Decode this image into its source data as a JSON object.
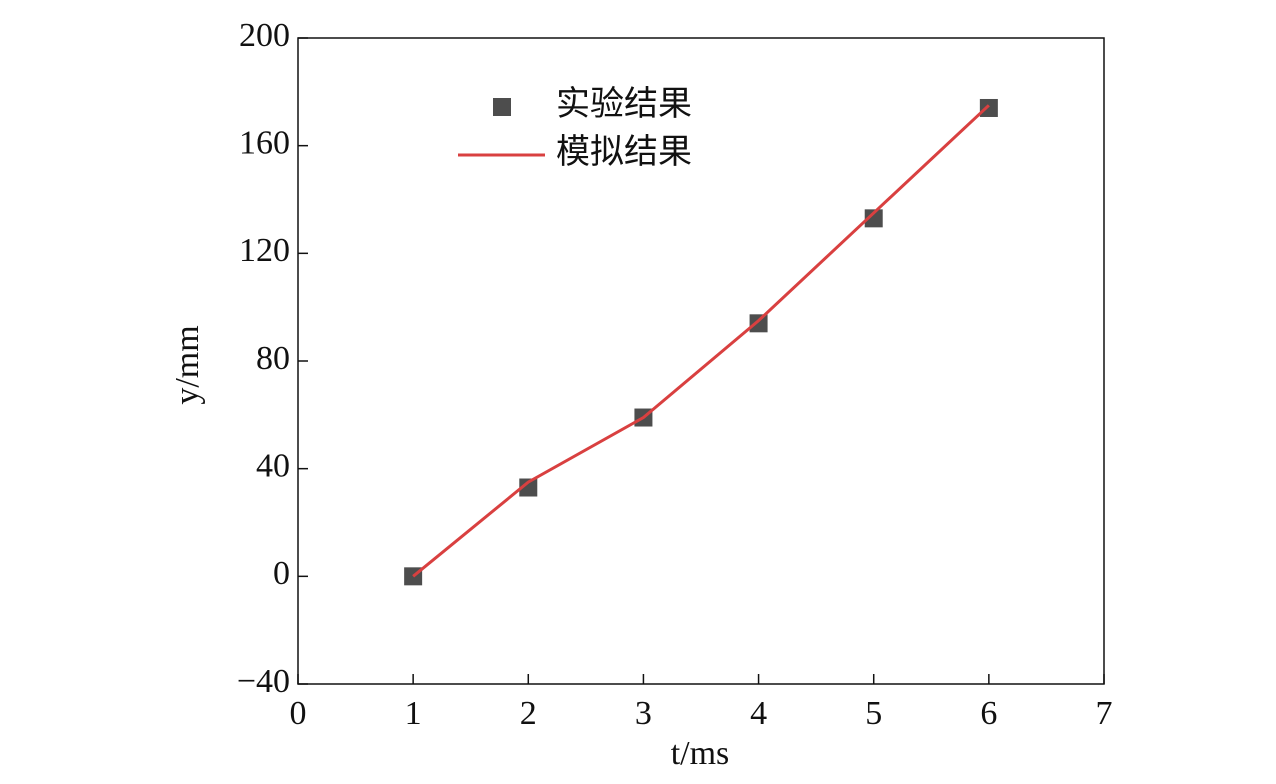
{
  "chart_data": {
    "type": "line",
    "x_label": "t/ms",
    "y_label": "y/mm",
    "xlim": [
      0,
      7
    ],
    "xticks": [
      0,
      1,
      2,
      3,
      4,
      5,
      6,
      7
    ],
    "ylim": [
      -40,
      200
    ],
    "yticks": [
      -40,
      0,
      40,
      80,
      120,
      160,
      200
    ],
    "ytick_labels": [
      "−40",
      "0",
      "40",
      "80",
      "120",
      "160",
      "200"
    ],
    "x": [
      1,
      2,
      3,
      4,
      5,
      6
    ],
    "series": [
      {
        "name": "实验结果",
        "mode": "markers",
        "color": "#4d4d4d",
        "values": [
          0,
          33,
          59,
          94,
          133,
          174
        ]
      },
      {
        "name": "模拟结果",
        "mode": "lines",
        "color": "#d94040",
        "values": [
          0,
          35,
          59,
          95,
          135,
          175
        ]
      }
    ]
  }
}
